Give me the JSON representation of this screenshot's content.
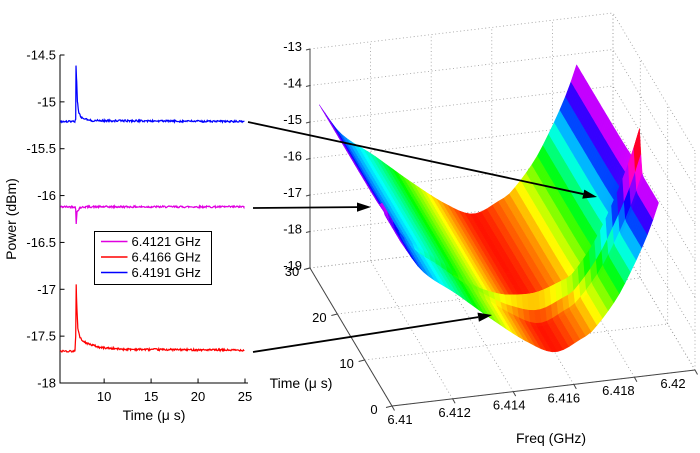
{
  "figure": {
    "background": "#ffffff"
  },
  "chart_data": [
    {
      "type": "line",
      "title": "",
      "xlabel": "Time (μ s)",
      "ylabel": "Power (dBm)",
      "xlim": [
        5.3,
        25
      ],
      "ylim": [
        -18,
        -14.5
      ],
      "xticks": [
        10,
        15,
        20,
        25
      ],
      "yticks": [
        -14.5,
        -15,
        -15.5,
        -16,
        -16.5,
        -17,
        -17.5,
        -18
      ],
      "ytick_labels": [
        "-14.5",
        "-15",
        "-15.5",
        "-16",
        "-16.5",
        "-17",
        "-17.5",
        "-18"
      ],
      "grid": false,
      "legend": {
        "position": "center-left",
        "entries": [
          "6.4121 GHz",
          "6.4166 GHz",
          "6.4191 GHz"
        ]
      },
      "series": [
        {
          "name": "6.4121 GHz",
          "color": "#e000e0",
          "baseline_dBm": -16.12,
          "extremum_dBm": -16.31,
          "event_time_us": 7,
          "keypoints": [
            [
              5.3,
              -16.12
            ],
            [
              6.9,
              -16.12
            ],
            [
              6.97,
              -16.14
            ],
            [
              7.02,
              -16.31
            ],
            [
              7.12,
              -16.17
            ],
            [
              7.4,
              -16.13
            ],
            [
              8.0,
              -16.12
            ],
            [
              24.9,
              -16.12
            ]
          ],
          "noise_dB": 0.01
        },
        {
          "name": "6.4166 GHz",
          "color": "#ff0000",
          "baseline_dBm": -17.66,
          "extremum_dBm": -16.95,
          "event_time_us": 7,
          "keypoints": [
            [
              5.3,
              -17.66
            ],
            [
              6.9,
              -17.66
            ],
            [
              6.97,
              -17.5
            ],
            [
              7.02,
              -16.95
            ],
            [
              7.1,
              -17.2
            ],
            [
              7.2,
              -17.42
            ],
            [
              7.45,
              -17.52
            ],
            [
              8.0,
              -17.57
            ],
            [
              9.5,
              -17.62
            ],
            [
              12.0,
              -17.64
            ],
            [
              24.9,
              -17.65
            ]
          ],
          "noise_dB": 0.01
        },
        {
          "name": "6.4191 GHz",
          "color": "#0000ff",
          "baseline_dBm": -15.21,
          "extremum_dBm": -14.62,
          "event_time_us": 7,
          "keypoints": [
            [
              5.3,
              -15.21
            ],
            [
              6.9,
              -15.21
            ],
            [
              6.97,
              -15.18
            ],
            [
              7.0,
              -14.62
            ],
            [
              7.08,
              -14.78
            ],
            [
              7.15,
              -15.0
            ],
            [
              7.3,
              -15.12
            ],
            [
              7.6,
              -15.17
            ],
            [
              8.5,
              -15.2
            ],
            [
              24.9,
              -15.21
            ]
          ],
          "noise_dB": 0.01
        }
      ]
    },
    {
      "type": "surface",
      "title": "",
      "xlabel": "Freq (GHz)",
      "ylabel": "Time (μ s)",
      "zlabel": "",
      "xlim": [
        6.41,
        6.42
      ],
      "ylim": [
        0,
        30
      ],
      "zlim": [
        -19,
        -13
      ],
      "xticks": [
        6.41,
        6.412,
        6.414,
        6.416,
        6.418,
        6.42
      ],
      "xtick_labels": [
        "6.41",
        "6.412",
        "6.414",
        "6.416",
        "6.418",
        "6.42"
      ],
      "yticks": [
        0,
        10,
        20,
        30
      ],
      "zticks": [
        -13,
        -14,
        -15,
        -16,
        -17,
        -18,
        -19
      ],
      "grid": true,
      "colormap": "hsv",
      "color_axis": [
        -18.1,
        -13.6
      ],
      "surface": {
        "freq_range": [
          6.4103,
          6.4188
        ],
        "time_range": [
          0,
          30
        ],
        "resonance_freq_GHz": 6.4154,
        "min_power_dBm": -18.05,
        "valley_profile": [
          [
            6.4103,
            -14.55
          ],
          [
            6.411,
            -15.4
          ],
          [
            6.4121,
            -16.12
          ],
          [
            6.4133,
            -16.95
          ],
          [
            6.4145,
            -17.7
          ],
          [
            6.4154,
            -18.05
          ],
          [
            6.4163,
            -17.75
          ],
          [
            6.4166,
            -17.6
          ],
          [
            6.4174,
            -16.8
          ],
          [
            6.418,
            -15.9
          ],
          [
            6.4185,
            -15.0
          ],
          [
            6.4188,
            -14.3
          ]
        ],
        "transient": {
          "time_us": 7,
          "width_us": 0.55,
          "tail_us": 2.2,
          "amplitude_profile": [
            [
              6.4103,
              0.2
            ],
            [
              6.4112,
              0.0
            ],
            [
              6.4121,
              -0.25
            ],
            [
              6.413,
              -0.05
            ],
            [
              6.4142,
              0.3
            ],
            [
              6.4154,
              0.75
            ],
            [
              6.4166,
              0.7
            ],
            [
              6.418,
              0.95
            ],
            [
              6.4188,
              1.15
            ]
          ]
        }
      }
    }
  ],
  "annotations": {
    "arrows": [
      {
        "id": "arrow-6.4191GHz-to-surface",
        "from": [
          248,
          122
        ],
        "to": [
          597,
          197
        ]
      },
      {
        "id": "arrow-6.4121GHz-to-surface",
        "from": [
          253,
          208
        ],
        "to": [
          371,
          207
        ]
      },
      {
        "id": "arrow-6.4166GHz-to-surface",
        "from": [
          253,
          352
        ],
        "to": [
          492,
          315
        ]
      }
    ]
  }
}
